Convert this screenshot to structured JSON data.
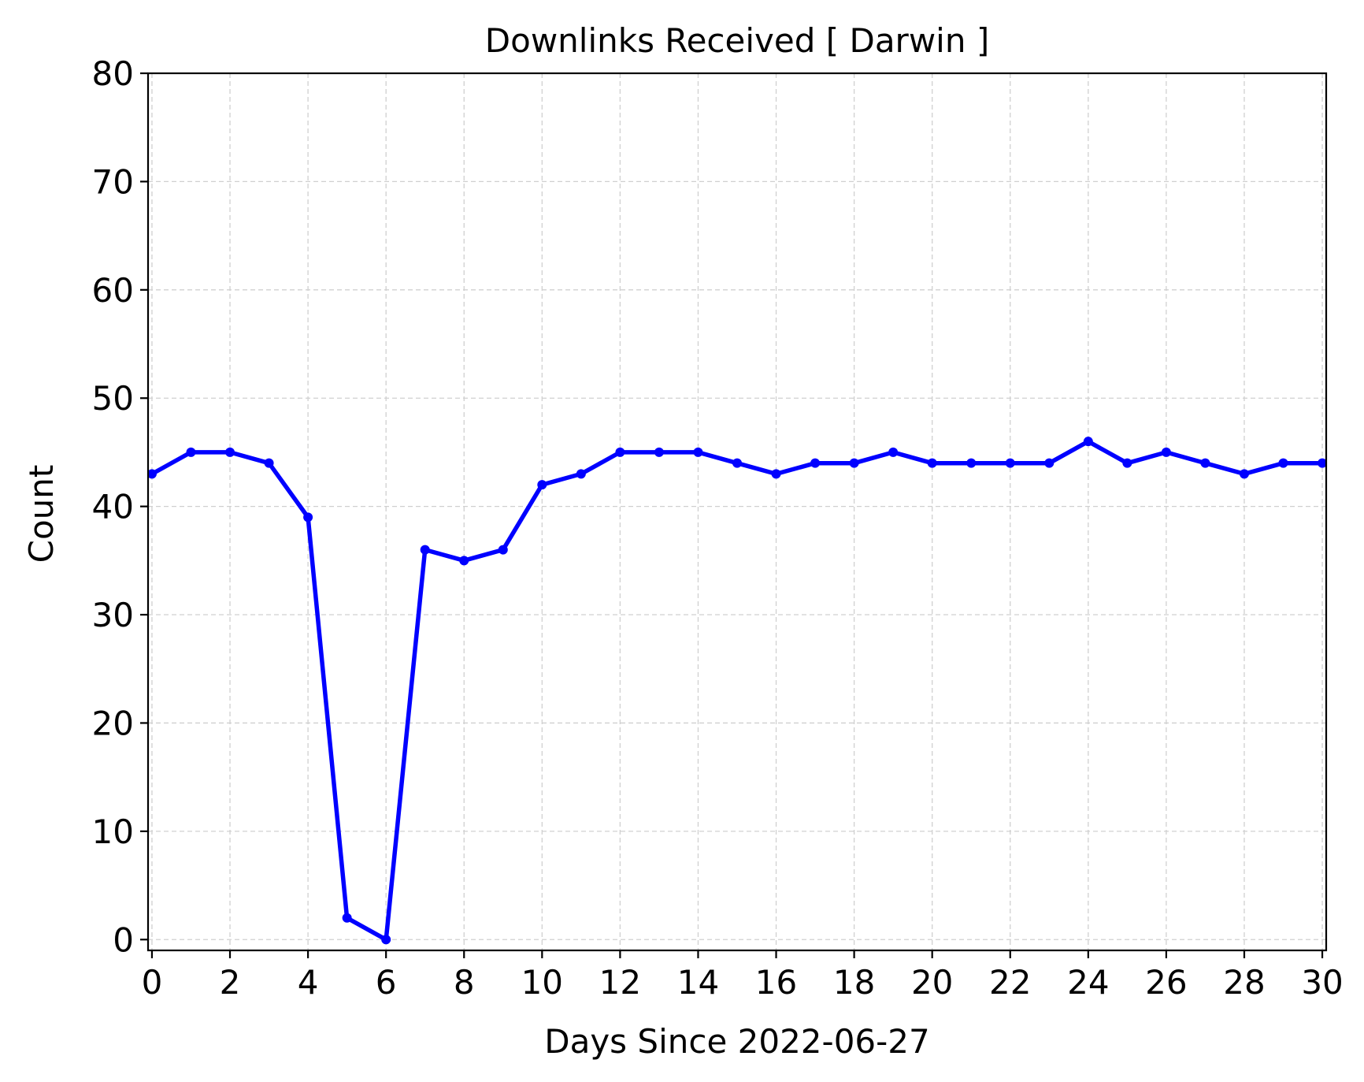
{
  "chart_data": {
    "type": "line",
    "title": "Downlinks Received [ Darwin ]",
    "xlabel": "Days Since 2022-06-27",
    "ylabel": "Count",
    "xlim": [
      -0.1,
      30.1
    ],
    "ylim": [
      -1,
      80
    ],
    "xticks": [
      0,
      2,
      4,
      6,
      8,
      10,
      12,
      14,
      16,
      18,
      20,
      22,
      24,
      26,
      28,
      30
    ],
    "yticks": [
      0,
      10,
      20,
      30,
      40,
      50,
      60,
      70,
      80
    ],
    "grid": true,
    "series": [
      {
        "color": "#0000ff",
        "marker": "circle",
        "x": [
          0,
          1,
          2,
          3,
          4,
          5,
          6,
          7,
          8,
          9,
          10,
          11,
          12,
          13,
          14,
          15,
          16,
          17,
          18,
          19,
          20,
          21,
          22,
          23,
          24,
          25,
          26,
          27,
          28,
          29,
          30
        ],
        "y": [
          43,
          45,
          45,
          44,
          39,
          2,
          0,
          36,
          35,
          36,
          42,
          43,
          45,
          45,
          45,
          44,
          43,
          44,
          44,
          45,
          44,
          44,
          44,
          44,
          46,
          44,
          45,
          44,
          43,
          44,
          44
        ]
      }
    ]
  }
}
